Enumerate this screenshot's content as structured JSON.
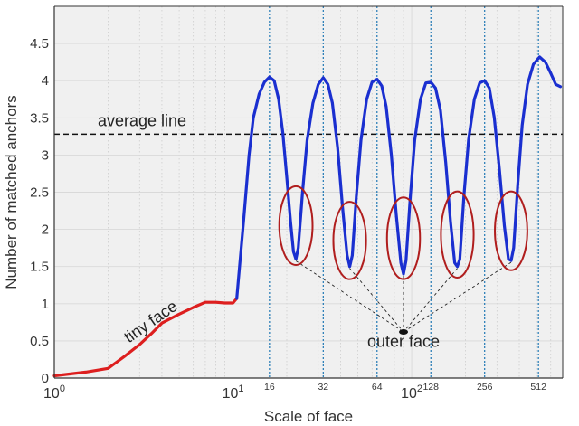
{
  "chart_data": {
    "type": "line",
    "xlabel": "Scale of face",
    "ylabel": "Number of matched anchors",
    "xscale": "log",
    "xlim": [
      1,
      700
    ],
    "ylim": [
      0,
      5
    ],
    "grid": true,
    "x_ticks": [
      {
        "value": 1,
        "base": "10",
        "exp": "0"
      },
      {
        "value": 10,
        "base": "10",
        "exp": "1"
      },
      {
        "value": 100,
        "base": "10",
        "exp": "2"
      }
    ],
    "y_ticks": [
      {
        "value": 0,
        "label": "0"
      },
      {
        "value": 0.5,
        "label": "0.5"
      },
      {
        "value": 1,
        "label": "1"
      },
      {
        "value": 1.5,
        "label": "1.5"
      },
      {
        "value": 2,
        "label": "2"
      },
      {
        "value": 2.5,
        "label": "2.5"
      },
      {
        "value": 3,
        "label": "3"
      },
      {
        "value": 3.5,
        "label": "3.5"
      },
      {
        "value": 4,
        "label": "4"
      },
      {
        "value": 4.5,
        "label": "4.5"
      }
    ],
    "scale_lines": [
      {
        "value": 16,
        "label": "16"
      },
      {
        "value": 32,
        "label": "32"
      },
      {
        "value": 64,
        "label": "64"
      },
      {
        "value": 128,
        "label": "128"
      },
      {
        "value": 256,
        "label": "256"
      },
      {
        "value": 512,
        "label": "512"
      }
    ],
    "average_line": {
      "value": 3.28,
      "label": "average line"
    },
    "series": [
      {
        "role": "tiny face",
        "color": "#dd1f1f",
        "points": [
          [
            1,
            0.03
          ],
          [
            1.5,
            0.08
          ],
          [
            2,
            0.13
          ],
          [
            2.5,
            0.3
          ],
          [
            3,
            0.45
          ],
          [
            3.5,
            0.6
          ],
          [
            4,
            0.74
          ],
          [
            5,
            0.86
          ],
          [
            6,
            0.95
          ],
          [
            7,
            1.02
          ],
          [
            8,
            1.02
          ],
          [
            9,
            1.01
          ],
          [
            10,
            1.01
          ],
          [
            10.5,
            1.07
          ]
        ]
      },
      {
        "role": "matched anchors",
        "color": "#1a2fd0",
        "points": [
          [
            10.5,
            1.07
          ],
          [
            11.5,
            2.15
          ],
          [
            12.3,
            3.0
          ],
          [
            13,
            3.5
          ],
          [
            14,
            3.82
          ],
          [
            15,
            3.98
          ],
          [
            16,
            4.05
          ],
          [
            17,
            4.0
          ],
          [
            18,
            3.75
          ],
          [
            19,
            3.3
          ],
          [
            20,
            2.7
          ],
          [
            21,
            2.1
          ],
          [
            21.8,
            1.7
          ],
          [
            22.5,
            1.6
          ],
          [
            23.2,
            1.75
          ],
          [
            24.5,
            2.5
          ],
          [
            26,
            3.2
          ],
          [
            28,
            3.7
          ],
          [
            30,
            3.95
          ],
          [
            32,
            4.04
          ],
          [
            34,
            3.95
          ],
          [
            36,
            3.7
          ],
          [
            38.5,
            3.1
          ],
          [
            41,
            2.3
          ],
          [
            43.5,
            1.65
          ],
          [
            45,
            1.5
          ],
          [
            46.5,
            1.65
          ],
          [
            49,
            2.45
          ],
          [
            52,
            3.2
          ],
          [
            56,
            3.75
          ],
          [
            60,
            3.98
          ],
          [
            64,
            4.02
          ],
          [
            68,
            3.93
          ],
          [
            72,
            3.65
          ],
          [
            77,
            3.0
          ],
          [
            82,
            2.2
          ],
          [
            87,
            1.55
          ],
          [
            90,
            1.4
          ],
          [
            93,
            1.58
          ],
          [
            98,
            2.4
          ],
          [
            104,
            3.2
          ],
          [
            112,
            3.75
          ],
          [
            120,
            3.97
          ],
          [
            128,
            3.98
          ],
          [
            136,
            3.9
          ],
          [
            145,
            3.6
          ],
          [
            155,
            2.9
          ],
          [
            165,
            2.1
          ],
          [
            174,
            1.55
          ],
          [
            180,
            1.5
          ],
          [
            186,
            1.6
          ],
          [
            196,
            2.45
          ],
          [
            208,
            3.2
          ],
          [
            224,
            3.75
          ],
          [
            240,
            3.97
          ],
          [
            256,
            4.0
          ],
          [
            272,
            3.9
          ],
          [
            290,
            3.5
          ],
          [
            310,
            2.8
          ],
          [
            330,
            2.05
          ],
          [
            348,
            1.6
          ],
          [
            360,
            1.58
          ],
          [
            372,
            1.75
          ],
          [
            392,
            2.6
          ],
          [
            415,
            3.4
          ],
          [
            445,
            3.95
          ],
          [
            480,
            4.22
          ],
          [
            520,
            4.32
          ],
          [
            560,
            4.25
          ],
          [
            600,
            4.1
          ],
          [
            640,
            3.95
          ],
          [
            680,
            3.92
          ]
        ]
      }
    ],
    "annotations": [
      {
        "text": "tiny face",
        "x": 3.6,
        "y": 0.7,
        "rotate": -35
      },
      {
        "text": "outer face",
        "x": 90,
        "y": 0.42
      }
    ],
    "outer_face_point": {
      "x": 90,
      "y": 0.62
    },
    "circled_minima": [
      {
        "x": 22.5,
        "y": 2.05,
        "rx": 1.15,
        "ry": 0.53
      },
      {
        "x": 45,
        "y": 1.85,
        "rx": 1.13,
        "ry": 0.52
      },
      {
        "x": 90,
        "y": 1.88,
        "rx": 1.14,
        "ry": 0.55
      },
      {
        "x": 180,
        "y": 1.93,
        "rx": 1.13,
        "ry": 0.58
      },
      {
        "x": 360,
        "y": 1.98,
        "rx": 1.12,
        "ry": 0.53
      }
    ]
  }
}
